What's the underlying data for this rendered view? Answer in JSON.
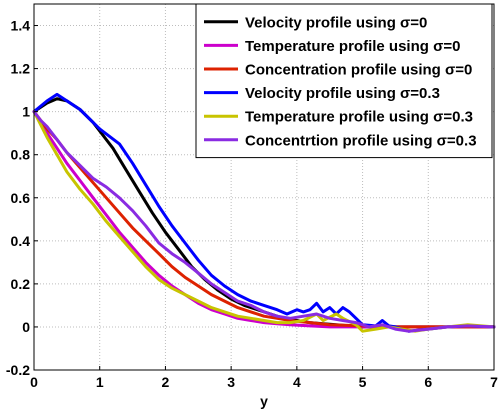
{
  "chart_data": {
    "type": "line",
    "title": "",
    "xlabel": "y",
    "ylabel": "",
    "xlim": [
      0,
      7
    ],
    "ylim": [
      -0.2,
      1.5
    ],
    "xticks": [
      "0",
      "1",
      "2",
      "3",
      "4",
      "5",
      "6",
      "7"
    ],
    "yticks": [
      "-0.2",
      "0",
      "0.2",
      "0.4",
      "0.6",
      "0.8",
      "1",
      "1.2",
      "1.4"
    ],
    "grid": true,
    "legend_position": "top-right",
    "series": [
      {
        "name": "Velocity profile using σ=0",
        "color": "#000000",
        "x": [
          0,
          0.2,
          0.35,
          0.5,
          0.7,
          0.9,
          1.0,
          1.2,
          1.4,
          1.6,
          1.8,
          2.0,
          2.2,
          2.4,
          2.6,
          2.8,
          3.0,
          3.2,
          3.4,
          3.6,
          3.8,
          4.0,
          4.2,
          4.4,
          4.6,
          4.8,
          5.0,
          5.5,
          6.0,
          6.5,
          7.0
        ],
        "y": [
          1.0,
          1.04,
          1.06,
          1.05,
          1.01,
          0.95,
          0.91,
          0.83,
          0.73,
          0.63,
          0.53,
          0.44,
          0.36,
          0.28,
          0.22,
          0.17,
          0.13,
          0.1,
          0.08,
          0.06,
          0.04,
          0.03,
          0.02,
          0.015,
          0.01,
          0.005,
          0.0,
          0.0,
          0.0,
          0.0,
          0.0
        ]
      },
      {
        "name": "Temperature profile using σ=0",
        "color": "#cc00cc",
        "x": [
          0,
          0.1,
          0.2,
          0.35,
          0.5,
          0.7,
          0.9,
          1.1,
          1.3,
          1.5,
          1.7,
          1.9,
          2.1,
          2.3,
          2.5,
          2.7,
          2.9,
          3.1,
          3.3,
          3.5,
          3.7,
          3.9,
          4.2,
          4.5,
          5.0,
          5.5,
          6.0,
          6.5,
          7.0
        ],
        "y": [
          1.0,
          0.95,
          0.9,
          0.83,
          0.76,
          0.68,
          0.6,
          0.52,
          0.44,
          0.37,
          0.3,
          0.24,
          0.19,
          0.15,
          0.11,
          0.08,
          0.06,
          0.04,
          0.03,
          0.02,
          0.015,
          0.01,
          0.005,
          0.0,
          0.0,
          0.0,
          0.0,
          0.0,
          0.0
        ]
      },
      {
        "name": "Concentration profile using σ=0",
        "color": "#dd2200",
        "x": [
          0,
          0.1,
          0.2,
          0.35,
          0.5,
          0.7,
          0.9,
          1.1,
          1.3,
          1.5,
          1.7,
          1.9,
          2.1,
          2.3,
          2.5,
          2.7,
          2.9,
          3.1,
          3.3,
          3.5,
          3.7,
          3.9,
          4.2,
          4.5,
          5.0,
          5.5,
          6.0,
          6.5,
          7.0
        ],
        "y": [
          1.0,
          0.96,
          0.92,
          0.87,
          0.81,
          0.74,
          0.67,
          0.6,
          0.53,
          0.46,
          0.4,
          0.34,
          0.28,
          0.23,
          0.19,
          0.15,
          0.12,
          0.09,
          0.07,
          0.05,
          0.04,
          0.03,
          0.02,
          0.01,
          0.005,
          0.0,
          0.0,
          0.0,
          0.0
        ]
      },
      {
        "name": "Velocity profile using σ=0.3",
        "color": "#0000ff",
        "x": [
          0,
          0.2,
          0.35,
          0.5,
          0.7,
          0.9,
          1.0,
          1.3,
          1.5,
          1.7,
          1.9,
          2.1,
          2.3,
          2.5,
          2.7,
          2.9,
          3.1,
          3.3,
          3.5,
          3.7,
          3.85,
          4.0,
          4.1,
          4.2,
          4.3,
          4.4,
          4.5,
          4.6,
          4.7,
          4.8,
          4.9,
          5.0,
          5.2,
          5.3,
          5.4,
          5.5,
          5.7,
          6.0,
          6.3,
          6.6,
          7.0
        ],
        "y": [
          1.0,
          1.05,
          1.08,
          1.05,
          1.01,
          0.95,
          0.92,
          0.85,
          0.76,
          0.66,
          0.56,
          0.47,
          0.39,
          0.31,
          0.24,
          0.19,
          0.15,
          0.12,
          0.1,
          0.08,
          0.06,
          0.08,
          0.07,
          0.08,
          0.11,
          0.07,
          0.09,
          0.06,
          0.09,
          0.07,
          0.04,
          0.01,
          0.005,
          0.03,
          0.005,
          0.0,
          -0.02,
          -0.01,
          0.0,
          0.005,
          0.0
        ]
      },
      {
        "name": "Temperature profile using σ=0.3",
        "color": "#c8c400",
        "x": [
          0,
          0.1,
          0.2,
          0.35,
          0.5,
          0.7,
          0.9,
          1.1,
          1.3,
          1.5,
          1.7,
          1.9,
          2.1,
          2.3,
          2.5,
          2.7,
          2.9,
          3.1,
          3.3,
          3.5,
          3.7,
          3.9,
          4.1,
          4.3,
          4.4,
          4.6,
          4.7,
          4.9,
          5.0,
          5.2,
          5.4,
          5.6,
          5.8,
          6.0,
          6.3,
          6.6,
          7.0
        ],
        "y": [
          1.0,
          0.94,
          0.88,
          0.8,
          0.72,
          0.64,
          0.57,
          0.49,
          0.42,
          0.35,
          0.28,
          0.22,
          0.18,
          0.15,
          0.12,
          0.09,
          0.07,
          0.05,
          0.04,
          0.03,
          0.02,
          0.02,
          0.03,
          0.06,
          0.03,
          0.06,
          0.04,
          0.01,
          -0.02,
          -0.01,
          0.0,
          -0.01,
          -0.02,
          -0.01,
          0.0,
          0.01,
          0.0
        ]
      },
      {
        "name": "Concentrtion profile using σ=0.3",
        "color": "#8a2be2",
        "x": [
          0,
          0.1,
          0.2,
          0.35,
          0.5,
          0.7,
          0.9,
          1.1,
          1.3,
          1.5,
          1.7,
          1.9,
          2.1,
          2.3,
          2.5,
          2.7,
          2.9,
          3.1,
          3.3,
          3.5,
          3.7,
          3.9,
          4.1,
          4.3,
          4.5,
          4.7,
          4.9,
          5.1,
          5.3,
          5.5,
          5.7,
          6.0,
          6.3,
          6.6,
          7.0
        ],
        "y": [
          1.0,
          0.96,
          0.93,
          0.87,
          0.81,
          0.75,
          0.69,
          0.65,
          0.6,
          0.54,
          0.47,
          0.39,
          0.34,
          0.3,
          0.25,
          0.2,
          0.16,
          0.12,
          0.1,
          0.07,
          0.05,
          0.04,
          0.05,
          0.06,
          0.04,
          0.03,
          0.02,
          0.0,
          0.01,
          -0.01,
          -0.02,
          -0.01,
          0.0,
          0.005,
          0.0
        ]
      }
    ]
  }
}
